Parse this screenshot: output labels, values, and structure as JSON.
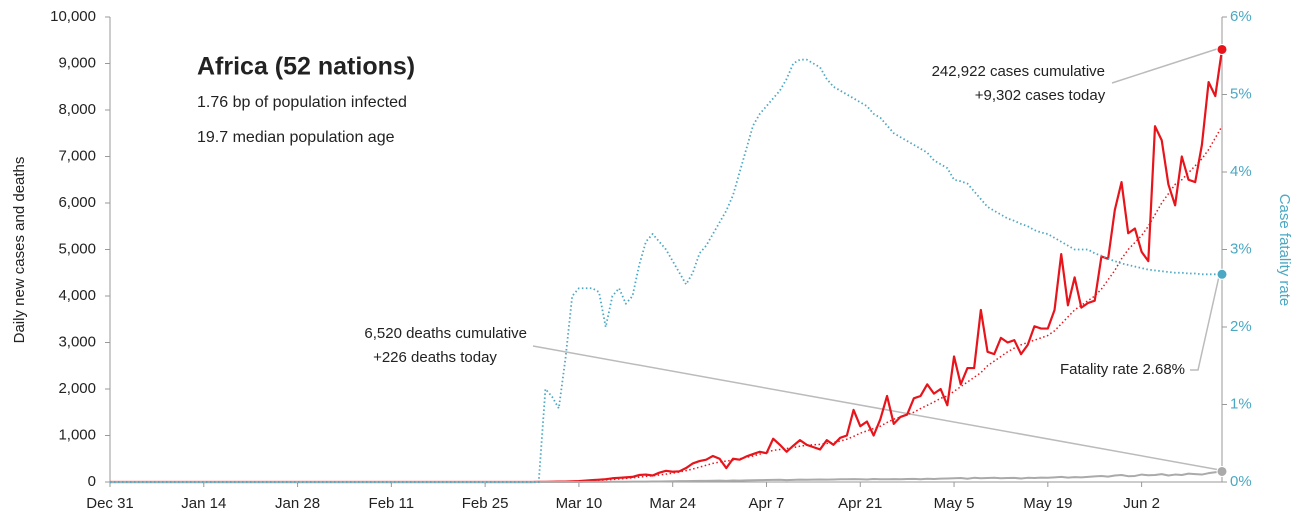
{
  "chart_data": {
    "type": "line",
    "title": "Africa (52 nations)",
    "subtitle": [
      "1.76 bp of population infected",
      "19.7 median population age"
    ],
    "ylabel": "Daily new cases and deaths",
    "y2label": "Case fatality rate",
    "annotations": [
      "242,922 cases cumulative",
      "+9,302 cases today",
      "6,520 deaths cumulative",
      "+226 deaths today",
      "Fatality rate 2.68%"
    ],
    "xlim": [
      0,
      166
    ],
    "xticks": [
      {
        "value": 0,
        "label": "Dec 31"
      },
      {
        "value": 14,
        "label": "Jan 14"
      },
      {
        "value": 28,
        "label": "Jan 28"
      },
      {
        "value": 42,
        "label": "Feb 11"
      },
      {
        "value": 56,
        "label": "Feb 25"
      },
      {
        "value": 70,
        "label": "Mar 10"
      },
      {
        "value": 84,
        "label": "Mar 24"
      },
      {
        "value": 98,
        "label": "Apr 7"
      },
      {
        "value": 112,
        "label": "Apr 21"
      },
      {
        "value": 126,
        "label": "May 5"
      },
      {
        "value": 140,
        "label": "May 19"
      },
      {
        "value": 154,
        "label": "Jun 2"
      }
    ],
    "ylim": [
      0,
      10000
    ],
    "yticks": [
      0,
      {
        "value": 1000,
        "label": "1,000"
      },
      {
        "value": 2000,
        "label": "2,000"
      },
      {
        "value": 3000,
        "label": "3,000"
      },
      {
        "value": 4000,
        "label": "4,000"
      },
      {
        "value": 5000,
        "label": "5,000"
      },
      {
        "value": 6000,
        "label": "6,000"
      },
      {
        "value": 7000,
        "label": "7,000"
      },
      {
        "value": 8000,
        "label": "8,000"
      },
      {
        "value": 9000,
        "label": "9,000"
      },
      {
        "value": 10000,
        "label": "10,000"
      }
    ],
    "y2lim": [
      0,
      6
    ],
    "y2ticks": [
      {
        "value": 0,
        "label": "0%"
      },
      {
        "value": 1,
        "label": "1%"
      },
      {
        "value": 2,
        "label": "2%"
      },
      {
        "value": 3,
        "label": "3%"
      },
      {
        "value": 4,
        "label": "4%"
      },
      {
        "value": 5,
        "label": "5%"
      },
      {
        "value": 6,
        "label": "6%"
      }
    ],
    "x": [
      0,
      62,
      63,
      64,
      65,
      66,
      67,
      68,
      69,
      70,
      71,
      72,
      73,
      74,
      75,
      76,
      77,
      78,
      79,
      80,
      81,
      82,
      83,
      84,
      85,
      86,
      87,
      88,
      89,
      90,
      91,
      92,
      93,
      94,
      95,
      96,
      97,
      98,
      99,
      100,
      101,
      102,
      103,
      104,
      105,
      106,
      107,
      108,
      109,
      110,
      111,
      112,
      113,
      114,
      115,
      116,
      117,
      118,
      119,
      120,
      121,
      122,
      123,
      124,
      125,
      126,
      127,
      128,
      129,
      130,
      131,
      132,
      133,
      134,
      135,
      136,
      137,
      138,
      139,
      140,
      141,
      142,
      143,
      144,
      145,
      146,
      147,
      148,
      149,
      150,
      151,
      152,
      153,
      154,
      155,
      156,
      157,
      158,
      159,
      160,
      161,
      162,
      163,
      164,
      165,
      166
    ],
    "series": [
      {
        "color": "#e8141b",
        "style": "solid",
        "width": 2.2,
        "marker": true,
        "values": [
          0,
          0,
          0,
          2,
          3,
          5,
          8,
          10,
          15,
          20,
          30,
          40,
          50,
          60,
          80,
          90,
          100,
          110,
          150,
          160,
          140,
          200,
          240,
          220,
          230,
          300,
          400,
          450,
          480,
          560,
          500,
          300,
          500,
          480,
          550,
          600,
          650,
          620,
          930,
          800,
          650,
          780,
          900,
          800,
          750,
          700,
          900,
          800,
          950,
          1000,
          1550,
          1200,
          1300,
          1000,
          1350,
          1850,
          1250,
          1400,
          1450,
          1800,
          1850,
          2100,
          1900,
          2000,
          1650,
          2700,
          2100,
          2450,
          2450,
          3700,
          2800,
          2750,
          3100,
          3000,
          3050,
          2750,
          2950,
          3350,
          3300,
          3300,
          3700,
          4900,
          3800,
          4400,
          3750,
          3850,
          3900,
          4850,
          4800,
          5850,
          6450,
          5350,
          5450,
          4950,
          4750,
          7650,
          7350,
          6400,
          5950,
          7000,
          6500,
          6450,
          7250,
          8600,
          8300,
          9302
        ]
      },
      {
        "color": "#e8141b",
        "style": "dotted",
        "width": 1.5,
        "marker": false,
        "values": [
          0,
          0,
          0,
          1,
          2,
          3,
          5,
          7,
          9,
          13,
          20,
          27,
          35,
          45,
          55,
          65,
          78,
          90,
          105,
          120,
          135,
          150,
          170,
          190,
          215,
          245,
          280,
          320,
          360,
          400,
          430,
          450,
          470,
          500,
          530,
          560,
          600,
          640,
          680,
          700,
          720,
          740,
          770,
          790,
          800,
          810,
          830,
          850,
          880,
          920,
          980,
          1050,
          1100,
          1150,
          1200,
          1280,
          1350,
          1400,
          1450,
          1500,
          1580,
          1650,
          1720,
          1800,
          1850,
          1950,
          2050,
          2150,
          2250,
          2350,
          2500,
          2600,
          2700,
          2800,
          2880,
          2950,
          3000,
          3050,
          3100,
          3150,
          3250,
          3400,
          3550,
          3700,
          3800,
          3900,
          4000,
          4150,
          4350,
          4550,
          4800,
          5000,
          5150,
          5300,
          5500,
          5750,
          6000,
          6200,
          6400,
          6500,
          6650,
          6800,
          6950,
          7150,
          7400,
          7650
        ]
      },
      {
        "color": "#aaaaaa",
        "style": "solid",
        "width": 2,
        "marker": true,
        "values": [
          0,
          0,
          0,
          0,
          0,
          0,
          0,
          1,
          1,
          1,
          2,
          2,
          3,
          3,
          4,
          5,
          6,
          7,
          8,
          9,
          10,
          12,
          14,
          15,
          18,
          20,
          22,
          25,
          25,
          28,
          30,
          25,
          32,
          30,
          35,
          38,
          40,
          42,
          45,
          48,
          40,
          45,
          50,
          48,
          52,
          55,
          50,
          55,
          60,
          58,
          62,
          60,
          55,
          65,
          60,
          58,
          62,
          60,
          65,
          68,
          60,
          70,
          65,
          72,
          75,
          80,
          85,
          70,
          90,
          80,
          85,
          90,
          80,
          85,
          88,
          75,
          90,
          85,
          95,
          90,
          100,
          110,
          95,
          105,
          100,
          110,
          120,
          130,
          115,
          140,
          150,
          125,
          130,
          160,
          145,
          150,
          170,
          140,
          160,
          150,
          180,
          170,
          160,
          190,
          210,
          226
        ]
      },
      {
        "color": "#4aa8c4",
        "style": "dotted",
        "width": 1.8,
        "marker": true,
        "axis": "y2",
        "values": [
          0,
          0,
          0,
          0,
          1.2,
          1.1,
          0.95,
          1.6,
          2.4,
          2.5,
          2.5,
          2.5,
          2.45,
          2.0,
          2.4,
          2.5,
          2.3,
          2.4,
          2.8,
          3.1,
          3.2,
          3.1,
          3.0,
          2.85,
          2.7,
          2.55,
          2.7,
          2.95,
          3.05,
          3.2,
          3.35,
          3.5,
          3.7,
          4.0,
          4.3,
          4.6,
          4.75,
          4.85,
          4.95,
          5.05,
          5.2,
          5.4,
          5.45,
          5.45,
          5.4,
          5.35,
          5.2,
          5.1,
          5.05,
          5.0,
          4.95,
          4.9,
          4.85,
          4.75,
          4.7,
          4.6,
          4.5,
          4.45,
          4.4,
          4.35,
          4.3,
          4.25,
          4.15,
          4.1,
          4.05,
          3.9,
          3.88,
          3.85,
          3.75,
          3.65,
          3.55,
          3.5,
          3.45,
          3.4,
          3.37,
          3.33,
          3.3,
          3.25,
          3.22,
          3.2,
          3.15,
          3.1,
          3.05,
          3.0,
          3.0,
          3.0,
          2.95,
          2.92,
          2.88,
          2.85,
          2.82,
          2.8,
          2.78,
          2.76,
          2.74,
          2.73,
          2.72,
          2.71,
          2.7,
          2.7,
          2.69,
          2.69,
          2.68,
          2.68,
          2.68,
          2.68
        ]
      }
    ]
  }
}
